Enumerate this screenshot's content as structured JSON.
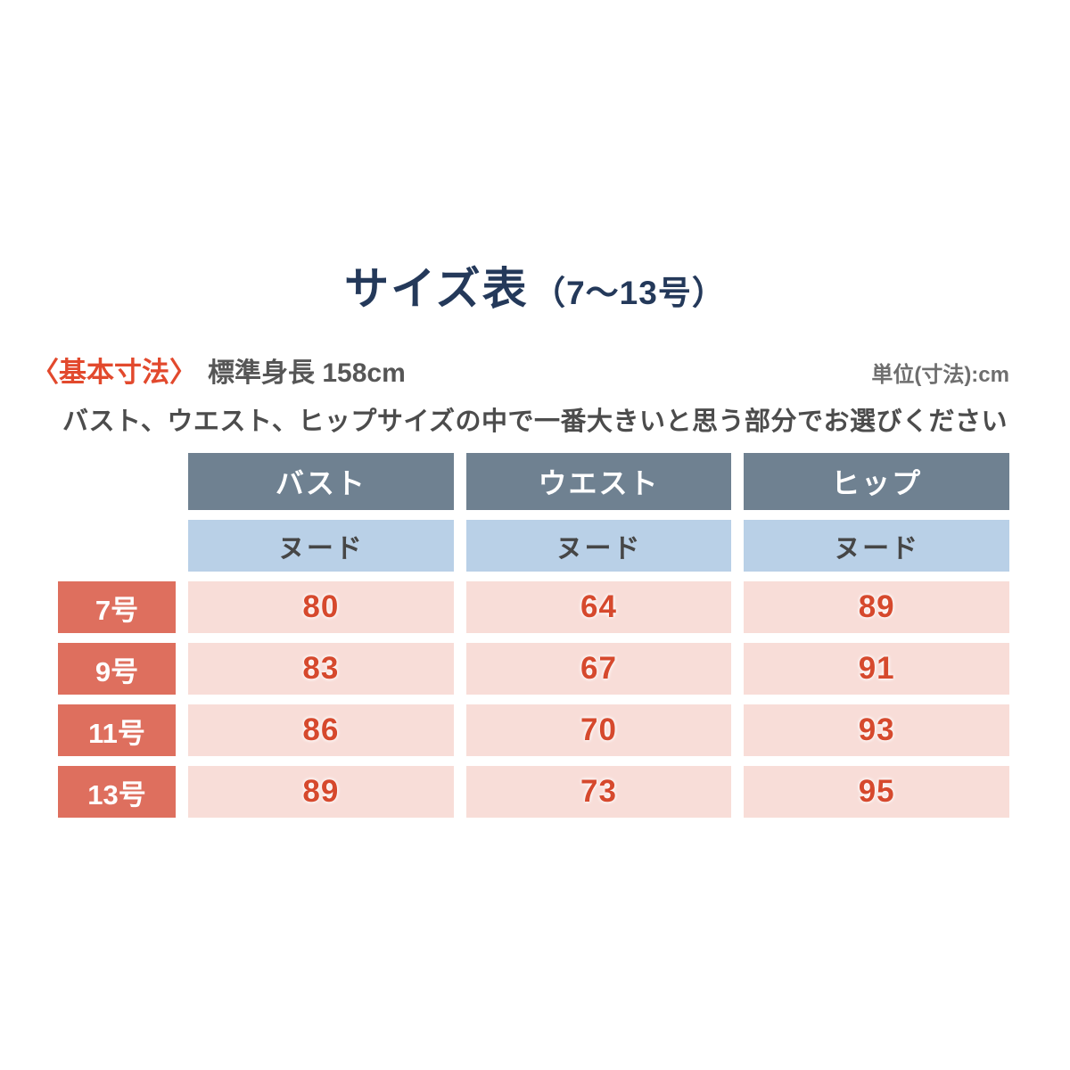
{
  "title": {
    "main": "サイズ表",
    "sub": "（7〜13号）"
  },
  "meta": {
    "label": "〈基本寸法〉",
    "standard_height": "標準身長 158cm",
    "unit": "単位(寸法):cm"
  },
  "note": "バスト、ウエスト、ヒップサイズの中で一番大きいと思う部分でお選びください",
  "table": {
    "columns": [
      "バスト",
      "ウエスト",
      "ヒップ"
    ],
    "sub_headers": [
      "ヌード",
      "ヌード",
      "ヌード"
    ],
    "rows": [
      {
        "label": "7号",
        "values": [
          "80",
          "64",
          "89"
        ]
      },
      {
        "label": "9号",
        "values": [
          "83",
          "67",
          "91"
        ]
      },
      {
        "label": "11号",
        "values": [
          "86",
          "70",
          "93"
        ]
      },
      {
        "label": "13号",
        "values": [
          "89",
          "73",
          "95"
        ]
      }
    ]
  },
  "colors": {
    "title_navy": "#24395a",
    "accent_red": "#e2492d",
    "header_slate": "#6f8191",
    "subheader_blue": "#b9d0e7",
    "row_label_coral": "#de6f5e",
    "cell_pink": "#f8ddd8",
    "value_red": "#d6492d",
    "body_gray": "#4c4c4c"
  },
  "chart_data": {
    "type": "table",
    "title": "サイズ表（7〜13号）",
    "unit": "cm",
    "standard_height_cm": 158,
    "measurement_basis": "ヌード",
    "columns": [
      "サイズ",
      "バスト",
      "ウエスト",
      "ヒップ"
    ],
    "rows": [
      [
        "7号",
        80,
        64,
        89
      ],
      [
        "9号",
        83,
        67,
        91
      ],
      [
        "11号",
        86,
        70,
        93
      ],
      [
        "13号",
        89,
        73,
        95
      ]
    ]
  }
}
